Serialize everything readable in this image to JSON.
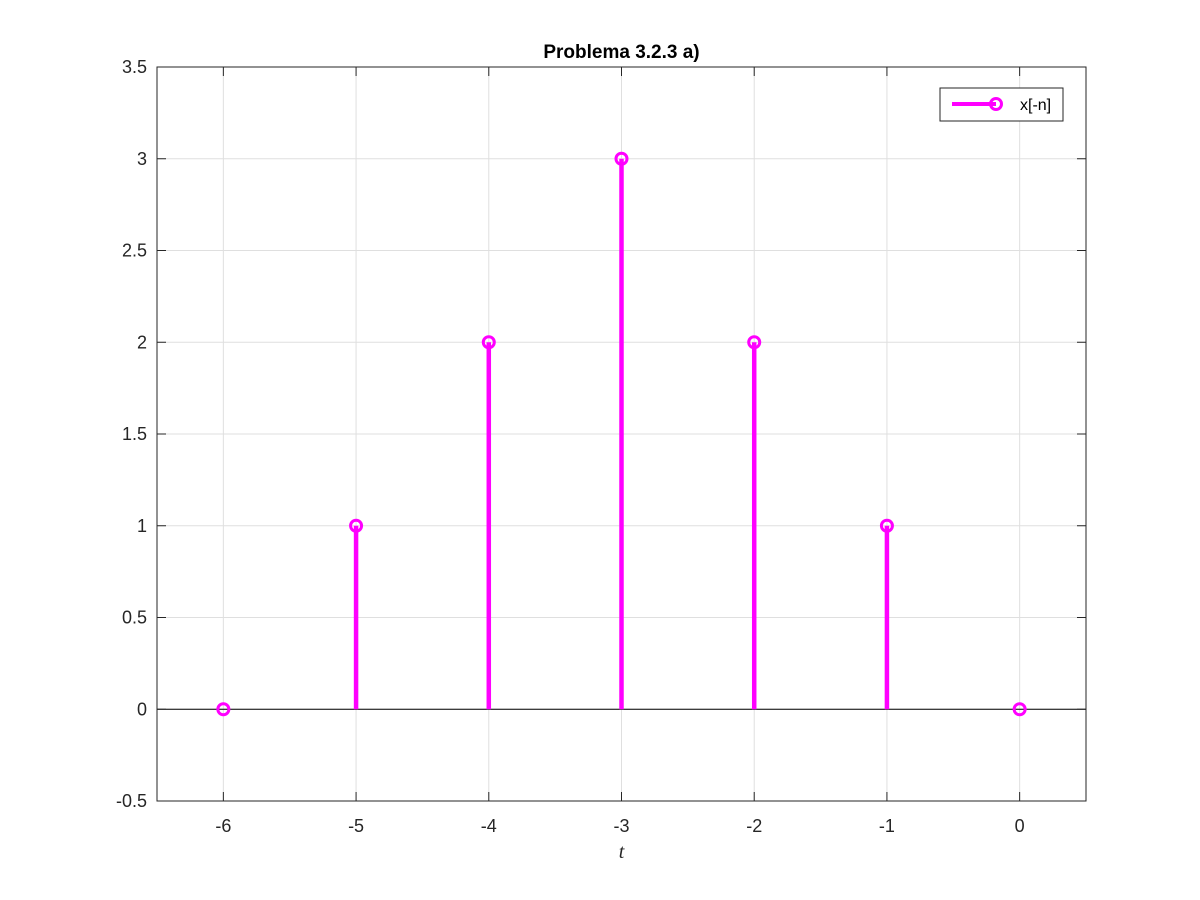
{
  "chart_data": {
    "type": "stem",
    "title": "Problema 3.2.3 a)",
    "xlabel": "t",
    "ylabel": "",
    "xlim": [
      -6.5,
      0.5
    ],
    "ylim": [
      -0.5,
      3.5
    ],
    "xticks": [
      -6,
      -5,
      -4,
      -3,
      -2,
      -1,
      0
    ],
    "xtick_labels": [
      "-6",
      "-5",
      "-4",
      "-3",
      "-2",
      "-1",
      "0"
    ],
    "yticks": [
      -0.5,
      0,
      0.5,
      1,
      1.5,
      2,
      2.5,
      3,
      3.5
    ],
    "ytick_labels": [
      "-0.5",
      "0",
      "0.5",
      "1",
      "1.5",
      "2",
      "2.5",
      "3",
      "3.5"
    ],
    "grid": true,
    "legend_position": "top-right",
    "series": [
      {
        "name": "x[-n]",
        "color": "#ff00ff",
        "x": [
          -6,
          -5,
          -4,
          -3,
          -2,
          -1,
          0
        ],
        "y": [
          0,
          1,
          2,
          3,
          2,
          1,
          0
        ]
      }
    ]
  }
}
